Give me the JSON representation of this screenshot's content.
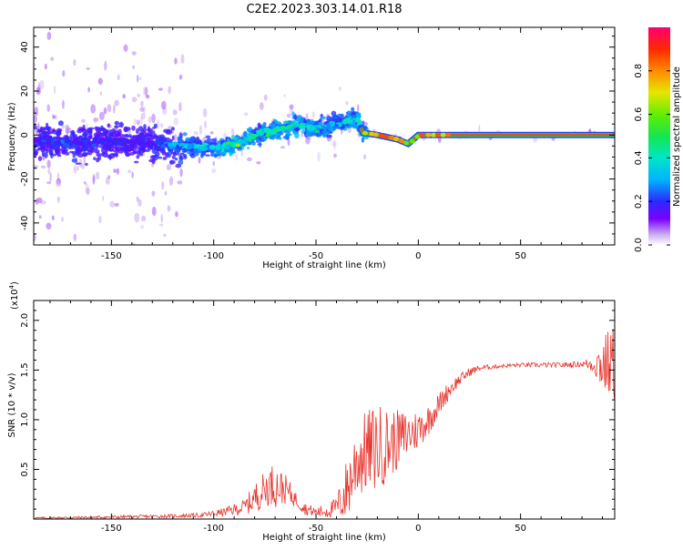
{
  "title": "C2E2.2023.303.14.01.R18",
  "chart_data": [
    {
      "type": "heatmap",
      "xlabel": "Height of straight line (km)",
      "ylabel": "Frequency (Hz)",
      "xlim": [
        -188,
        96
      ],
      "ylim": [
        -50,
        49
      ],
      "x_ticks": [
        -150,
        -100,
        -50,
        0,
        50
      ],
      "y_ticks": [
        -40,
        -20,
        0,
        20,
        40
      ],
      "colorbar": {
        "label": "Normalized spectral amplitude",
        "range": [
          0,
          1
        ],
        "ticks": [
          "0.0",
          "0.2",
          "0.4",
          "0.6",
          "0.8"
        ]
      },
      "ridge": {
        "x": [
          -188,
          -170,
          -150,
          -130,
          -115,
          -100,
          -88,
          -80,
          -70,
          -60,
          -50,
          -40,
          -30,
          -27,
          -20,
          -10,
          -5,
          0,
          10,
          20,
          40,
          60,
          80,
          96
        ],
        "y": [
          -2,
          -4,
          -3,
          -4,
          -5,
          -6,
          -4,
          0,
          2,
          5,
          3,
          5,
          8,
          1,
          0,
          -2,
          -4,
          0,
          0,
          0,
          0,
          0,
          0,
          0
        ],
        "amplitude": [
          0.2,
          0.25,
          0.2,
          0.2,
          0.35,
          0.4,
          0.6,
          0.45,
          0.5,
          0.45,
          0.45,
          0.4,
          0.45,
          0.55,
          0.7,
          0.8,
          0.6,
          0.85,
          0.9,
          0.9,
          0.9,
          0.9,
          0.9,
          0.9
        ]
      }
    },
    {
      "type": "line",
      "xlabel": "Height of straight line (km)",
      "ylabel": "SNR (10 * v/v)",
      "y_multiplier": "(x10",
      "y_multiplier_exp": "4",
      "xlim": [
        -188,
        96
      ],
      "ylim": [
        0,
        2.2
      ],
      "x_ticks": [
        -150,
        -100,
        -50,
        0,
        50
      ],
      "y_ticks": [
        0.5,
        1.0,
        1.5,
        2.0
      ],
      "series": [
        {
          "color": "#e8332c",
          "envelope_x": [
            -188,
            -150,
            -120,
            -105,
            -95,
            -85,
            -78,
            -72,
            -65,
            -60,
            -55,
            -50,
            -45,
            -40,
            -36,
            -33,
            -30,
            -25,
            -20,
            -15,
            -10,
            -5,
            0,
            5,
            10,
            15,
            20,
            25,
            30,
            40,
            50,
            60,
            70,
            80,
            85,
            90,
            96
          ],
          "envelope_y": [
            0.01,
            0.02,
            0.03,
            0.04,
            0.07,
            0.12,
            0.25,
            0.35,
            0.3,
            0.2,
            0.1,
            0.07,
            0.08,
            0.12,
            0.25,
            0.4,
            0.6,
            0.68,
            0.72,
            0.75,
            0.8,
            0.85,
            0.9,
            1.0,
            1.15,
            1.3,
            1.4,
            1.48,
            1.52,
            1.54,
            1.55,
            1.55,
            1.55,
            1.56,
            1.56,
            1.56,
            1.56
          ],
          "noise_x": [
            -188,
            -110,
            -95,
            -85,
            -80,
            -70,
            -65,
            -60,
            -50,
            -40,
            -36,
            -30,
            -20,
            -10,
            0,
            10,
            20,
            30,
            40,
            80,
            86,
            90,
            96
          ],
          "noise_amp": [
            0.01,
            0.02,
            0.04,
            0.08,
            0.15,
            0.22,
            0.15,
            0.08,
            0.05,
            0.1,
            0.3,
            0.4,
            0.45,
            0.3,
            0.2,
            0.12,
            0.06,
            0.03,
            0.02,
            0.03,
            0.1,
            0.3,
            0.4
          ]
        }
      ]
    }
  ]
}
